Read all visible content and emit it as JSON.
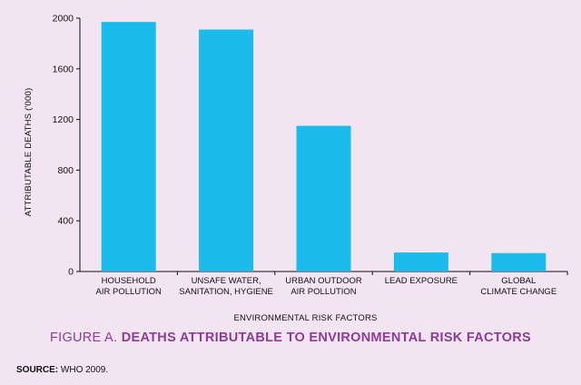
{
  "chart_data": {
    "type": "bar",
    "categories": [
      [
        "HOUSEHOLD",
        "AIR POLLUTION"
      ],
      [
        "UNSAFE WATER,",
        "SANITATION, HYGIENE"
      ],
      [
        "URBAN OUTDOOR",
        "AIR POLLUTION"
      ],
      [
        "LEAD EXPOSURE"
      ],
      [
        "GLOBAL",
        "CLIMATE CHANGE"
      ]
    ],
    "values": [
      1970,
      1910,
      1150,
      150,
      145
    ],
    "xlabel": "ENVIRONMENTAL RISK FACTORS",
    "ylabel": "ATTRIBUTABLE DEATHS ('000)",
    "ylim": [
      0,
      2000
    ],
    "yticks": [
      0,
      400,
      800,
      1200,
      1600,
      2000
    ],
    "bar_color": "#1bbbec",
    "grid": false
  },
  "caption": {
    "prefix": "FIGURE A. ",
    "title": "DEATHS ATTRIBUTABLE TO ENVIRONMENTAL RISK FACTORS"
  },
  "source": {
    "label": "SOURCE:",
    "text": " WHO 2009."
  },
  "colors": {
    "background": "#f3e4f1",
    "caption": "#8b3c97"
  }
}
